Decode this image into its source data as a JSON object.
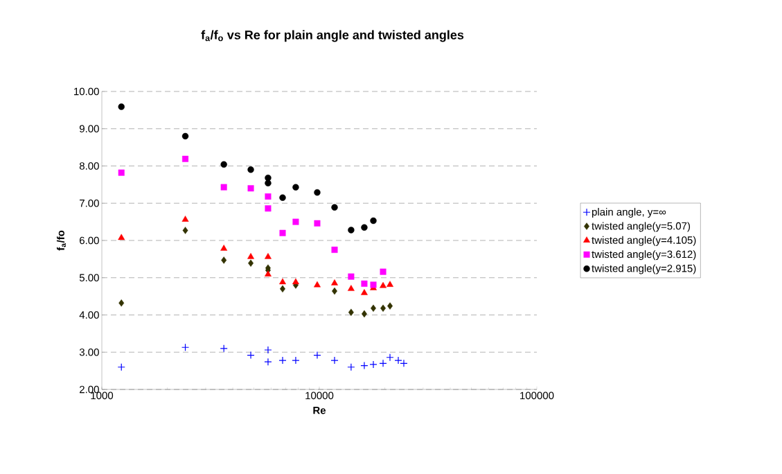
{
  "chart_data": {
    "type": "scatter",
    "title": "f$_{a}$/f$_{o}$ vs Re for plain angle and twisted angles",
    "xlabel": "Re",
    "ylabel": "f$_{a}$/fo",
    "log": "x",
    "grid": "y",
    "legend": "right",
    "xlim": [
      1000,
      100000
    ],
    "xticks": [
      1000,
      10000,
      100000
    ],
    "ylim": [
      2,
      10
    ],
    "yticks": [
      {
        "value": 2,
        "label": "2.00"
      },
      {
        "value": 3,
        "label": "3.00"
      },
      {
        "value": 4,
        "label": "4.00"
      },
      {
        "value": 5,
        "label": "5.00"
      },
      {
        "value": 6,
        "label": "6.00"
      },
      {
        "value": 7,
        "label": "7.00"
      },
      {
        "value": 8,
        "label": "8.00"
      },
      {
        "value": 9,
        "label": "9.00"
      },
      {
        "value": 10,
        "label": "10.00"
      }
    ],
    "series": [
      {
        "name": "plain angle, y=∞",
        "color": "#0000ff",
        "marker": "cross",
        "x": [
          1230,
          2420,
          3640,
          4840,
          5810,
          5810,
          6780,
          7790,
          9780,
          11750,
          14000,
          16100,
          17720,
          19640,
          21130,
          23070,
          24460
        ],
        "values": [
          2.6,
          3.13,
          3.1,
          2.92,
          3.06,
          2.74,
          2.78,
          2.78,
          2.92,
          2.78,
          2.6,
          2.64,
          2.67,
          2.7,
          2.86,
          2.78,
          2.7
        ]
      },
      {
        "name": "twisted angle(y=5.07)",
        "color": "#333300",
        "marker": "diamond",
        "x": [
          1230,
          2420,
          3640,
          4840,
          5810,
          5810,
          6780,
          7790,
          9780,
          11750,
          14000,
          16100,
          17720,
          19640,
          21130
        ],
        "values": [
          4.32,
          6.27,
          5.47,
          5.39,
          5.26,
          5.2,
          4.7,
          4.8,
          null,
          4.64,
          4.07,
          4.03,
          4.18,
          4.18,
          4.24
        ]
      },
      {
        "name": "twisted angle(y=4.105)",
        "color": "#ff0000",
        "marker": "triangle",
        "x": [
          1230,
          2420,
          3640,
          4840,
          5810,
          5810,
          6780,
          7790,
          9780,
          11750,
          14000,
          16100,
          17720,
          19640,
          21130
        ],
        "values": [
          6.07,
          6.56,
          5.78,
          5.56,
          5.56,
          5.09,
          4.88,
          4.88,
          4.8,
          4.85,
          4.7,
          4.59,
          4.72,
          4.78,
          4.81
        ]
      },
      {
        "name": "twisted angle(y=3.612)",
        "color": "#ff00ff",
        "marker": "square",
        "x": [
          1230,
          2420,
          3640,
          4840,
          5810,
          5810,
          6780,
          7790,
          9780,
          11750,
          14000,
          16100,
          17720,
          19640
        ],
        "values": [
          7.82,
          8.19,
          7.43,
          7.4,
          7.18,
          6.86,
          6.2,
          6.5,
          6.46,
          5.75,
          5.03,
          4.84,
          4.81,
          5.16
        ]
      },
      {
        "name": "twisted angle(y=2.915)",
        "color": "#000000",
        "marker": "circle",
        "x": [
          1230,
          2420,
          3640,
          4840,
          5810,
          5810,
          6780,
          7790,
          9780,
          11750,
          14000,
          16100,
          17720
        ],
        "values": [
          9.59,
          8.8,
          8.04,
          7.9,
          7.68,
          7.54,
          7.15,
          7.43,
          7.29,
          6.89,
          6.28,
          6.35,
          6.53
        ]
      }
    ]
  }
}
